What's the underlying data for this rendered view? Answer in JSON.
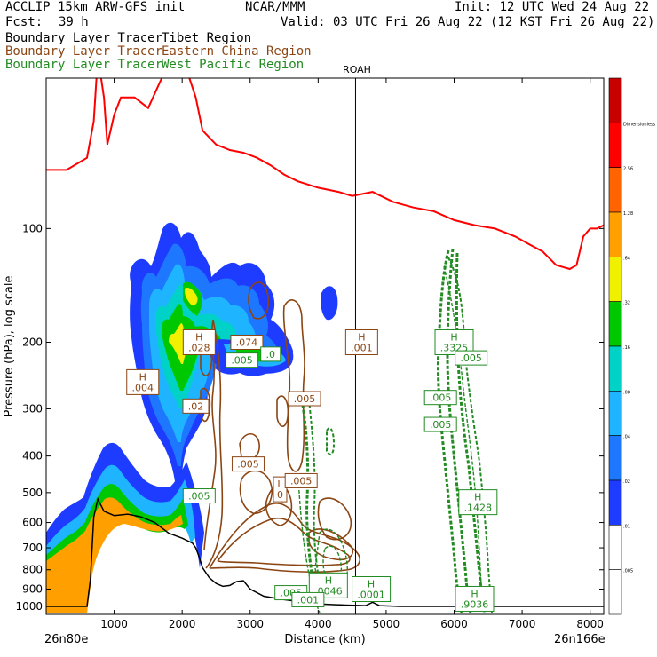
{
  "header": {
    "model": "ACCLIP 15km ARW-GFS init",
    "org": "NCAR/MMM",
    "init": "Init: 12 UTC Wed 24 Aug 22",
    "fcst_label": "Fcst:",
    "fcst_value": "39 h",
    "valid": "Valid: 03 UTC Fri 26 Aug 22 (12 KST Fri 26 Aug 22)"
  },
  "legend": [
    {
      "prefix": "Boundary Layer Tracer",
      "region": "Tibet Region",
      "color": "#000000"
    },
    {
      "prefix": "Boundary Layer Tracer",
      "region": "Eastern China Region",
      "color": "#8b4513"
    },
    {
      "prefix": "Boundary Layer Tracer",
      "region": "West Pacific Region",
      "color": "#228b22"
    }
  ],
  "chart_data": {
    "type": "cross-section",
    "xlabel": "Distance (km)",
    "ylabel": "Pressure (hPa), log scale",
    "xlim": [
      0,
      8200
    ],
    "ylim": [
      1050,
      40
    ],
    "y_scale": "log",
    "x_ticks": [
      1000,
      2000,
      3000,
      4000,
      5000,
      6000,
      7000,
      8000
    ],
    "y_ticks": [
      100,
      200,
      300,
      400,
      500,
      600,
      700,
      800,
      900,
      1000
    ],
    "x_left_label": "26n80e",
    "x_right_label": "26n166e",
    "station": {
      "name": "ROAH",
      "x": 4550
    },
    "colorbar": {
      "levels": [
        ".005",
        ".01",
        ".02",
        ".04",
        ".08",
        ".16",
        ".32",
        ".64",
        "1.28",
        "2.56",
        "Dimensionless"
      ],
      "colors": [
        "#ffffff",
        "#ffffff",
        "#1e3cff",
        "#1e78ff",
        "#1eb4ff",
        "#00d2c8",
        "#00c800",
        "#f0f000",
        "#ffa000",
        "#ff6400",
        "#ff0000",
        "#c80000"
      ]
    },
    "tropopause": [
      [
        0,
        70
      ],
      [
        300,
        70
      ],
      [
        600,
        65
      ],
      [
        700,
        52
      ],
      [
        760,
        35
      ],
      [
        850,
        45
      ],
      [
        900,
        60
      ],
      [
        1000,
        50
      ],
      [
        1100,
        45
      ],
      [
        1300,
        45
      ],
      [
        1500,
        48
      ],
      [
        1700,
        40
      ],
      [
        2000,
        35
      ],
      [
        2200,
        45
      ],
      [
        2300,
        55
      ],
      [
        2500,
        60
      ],
      [
        2700,
        62
      ],
      [
        2900,
        63
      ],
      [
        3100,
        65
      ],
      [
        3300,
        68
      ],
      [
        3500,
        72
      ],
      [
        3700,
        75
      ],
      [
        4000,
        78
      ],
      [
        4300,
        80
      ],
      [
        4500,
        82
      ],
      [
        4800,
        80
      ],
      [
        5100,
        85
      ],
      [
        5400,
        88
      ],
      [
        5700,
        90
      ],
      [
        6000,
        95
      ],
      [
        6300,
        98
      ],
      [
        6600,
        100
      ],
      [
        6900,
        105
      ],
      [
        7100,
        110
      ],
      [
        7300,
        115
      ],
      [
        7500,
        125
      ],
      [
        7700,
        128
      ],
      [
        7800,
        125
      ],
      [
        7900,
        105
      ],
      [
        8000,
        100
      ],
      [
        8100,
        100
      ],
      [
        8200,
        98
      ]
    ],
    "terrain": [
      [
        0,
        1000
      ],
      [
        600,
        1000
      ],
      [
        650,
        850
      ],
      [
        700,
        580
      ],
      [
        760,
        520
      ],
      [
        850,
        560
      ],
      [
        1000,
        575
      ],
      [
        1200,
        570
      ],
      [
        1400,
        580
      ],
      [
        1600,
        600
      ],
      [
        1800,
        640
      ],
      [
        2000,
        660
      ],
      [
        2150,
        680
      ],
      [
        2200,
        700
      ],
      [
        2250,
        740
      ],
      [
        2300,
        790
      ],
      [
        2400,
        840
      ],
      [
        2500,
        870
      ],
      [
        2600,
        885
      ],
      [
        2700,
        880
      ],
      [
        2800,
        860
      ],
      [
        2900,
        855
      ],
      [
        3000,
        900
      ],
      [
        3200,
        940
      ],
      [
        3500,
        960
      ],
      [
        3800,
        975
      ],
      [
        4000,
        985
      ],
      [
        4400,
        992
      ],
      [
        4700,
        995
      ],
      [
        4800,
        975
      ],
      [
        4900,
        995
      ],
      [
        5200,
        1000
      ],
      [
        8200,
        1000
      ]
    ],
    "labels": [
      {
        "text": "H\n.028",
        "x": 2250,
        "p": 200,
        "color": "#8b4513"
      },
      {
        "text": "H\n.004",
        "x": 1420,
        "p": 255,
        "color": "#8b4513"
      },
      {
        "text": ".074",
        "x": 2950,
        "p": 200,
        "color": "#8b4513"
      },
      {
        "text": ".005",
        "x": 2880,
        "p": 223,
        "color": "#228b22"
      },
      {
        "text": ".0",
        "x": 3300,
        "p": 215,
        "color": "#228b22"
      },
      {
        "text": ".02",
        "x": 2200,
        "p": 295,
        "color": "#8b4513"
      },
      {
        "text": ".005",
        "x": 3800,
        "p": 282,
        "color": "#8b4513"
      },
      {
        "text": "H\n.001",
        "x": 4640,
        "p": 200,
        "color": "#8b4513"
      },
      {
        "text": ".005",
        "x": 2970,
        "p": 420,
        "color": "#8b4513"
      },
      {
        "text": "L\n0",
        "x": 3440,
        "p": 490,
        "color": "#8b4513"
      },
      {
        "text": ".005",
        "x": 3750,
        "p": 465,
        "color": "#8b4513"
      },
      {
        "text": ".005",
        "x": 2250,
        "p": 510,
        "color": "#228b22"
      },
      {
        "text": "H\n.3325",
        "x": 6000,
        "p": 200,
        "color": "#228b22"
      },
      {
        "text": ".005",
        "x": 6250,
        "p": 220,
        "color": "#228b22"
      },
      {
        "text": ".005",
        "x": 5800,
        "p": 280,
        "color": "#228b22"
      },
      {
        "text": ".005",
        "x": 5800,
        "p": 330,
        "color": "#228b22"
      },
      {
        "text": "H\n.1428",
        "x": 6350,
        "p": 530,
        "color": "#228b22"
      },
      {
        "text": ".005",
        "x": 3600,
        "p": 920,
        "color": "#228b22"
      },
      {
        "text": "H\n.0046",
        "x": 4150,
        "p": 880,
        "color": "#228b22"
      },
      {
        "text": ".001",
        "x": 3850,
        "p": 960,
        "color": "#228b22"
      },
      {
        "text": "H\n.0001",
        "x": 4780,
        "p": 900,
        "color": "#228b22"
      },
      {
        "text": "H\n.9036",
        "x": 6300,
        "p": 955,
        "color": "#228b22"
      }
    ]
  }
}
